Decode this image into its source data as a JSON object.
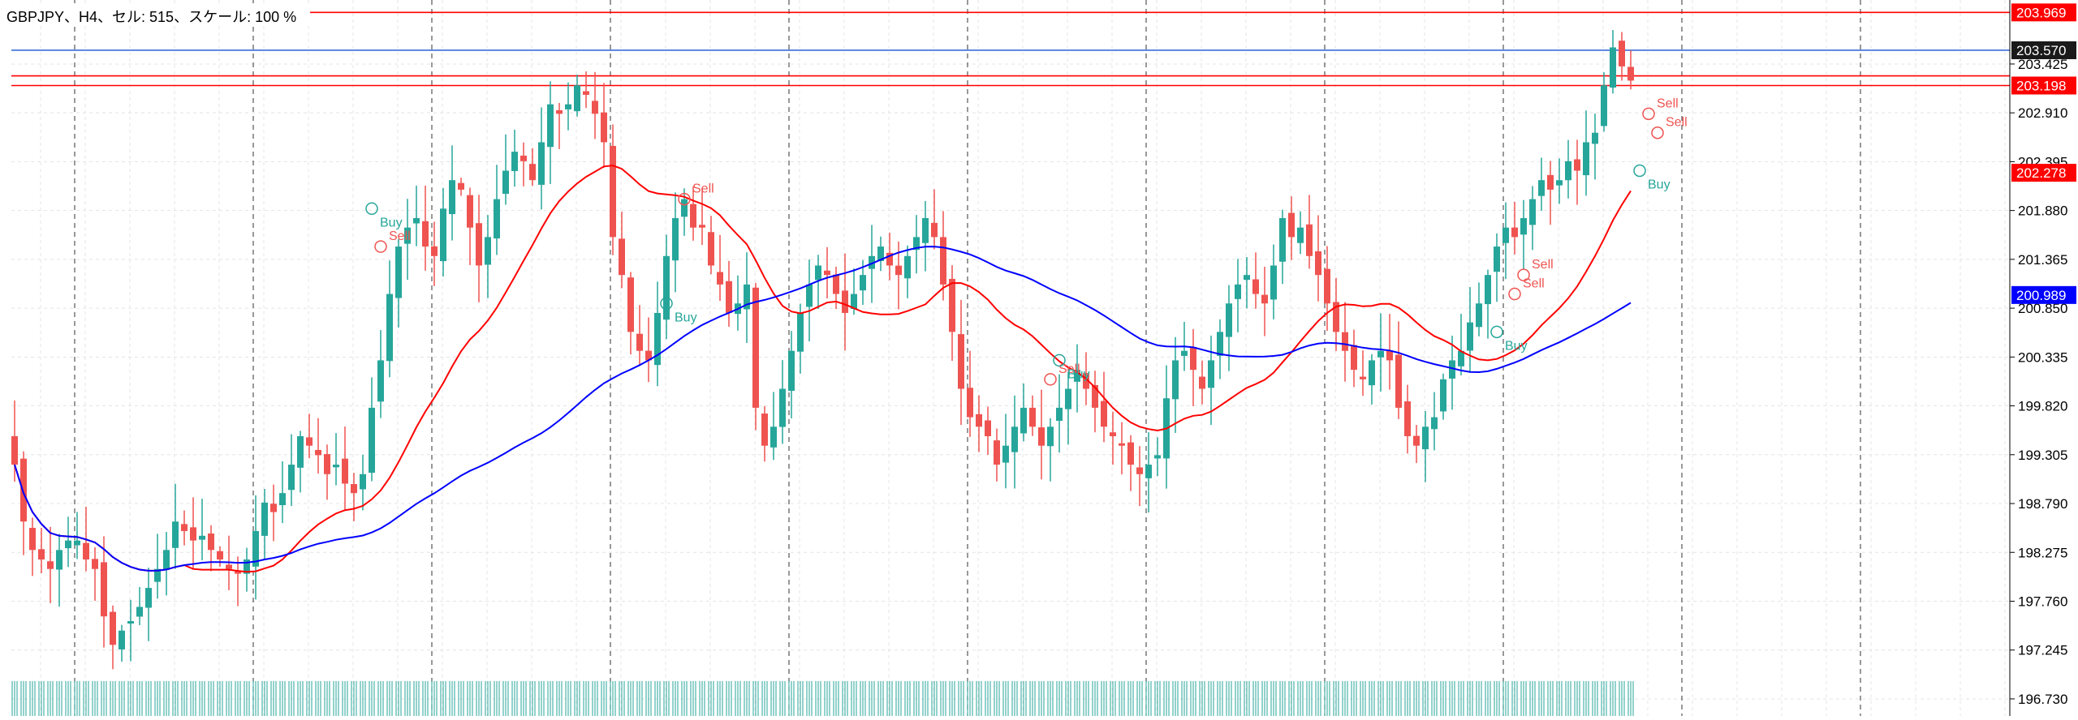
{
  "chart_data": {
    "type": "candlestick",
    "title": "GBPJPY、H4、セル: 515、スケール: 100 %",
    "symbol": "GBPJPY",
    "timeframe": "H4",
    "ylim": [
      196.55,
      204.1
    ],
    "price_scale": {
      "ticks": [
        "203.425",
        "202.910",
        "202.395",
        "201.880",
        "201.365",
        "200.850",
        "200.335",
        "199.820",
        "199.305",
        "198.790",
        "198.275",
        "197.760",
        "197.245",
        "196.730"
      ]
    },
    "horizontal_lines": [
      {
        "price": 203.969,
        "label": "203.969",
        "color": "#ff0000"
      },
      {
        "price": 203.57,
        "label": "203.570",
        "color": "#3a6fd8",
        "tag_color": "#1a1a1a"
      },
      {
        "price": 203.3,
        "label": "",
        "color": "#ff0000"
      },
      {
        "price": 203.198,
        "label": "203.198",
        "color": "#ff0000"
      }
    ],
    "price_tags": [
      {
        "price": 203.969,
        "label": "203.969",
        "color": "#ff0000"
      },
      {
        "price": 203.57,
        "label": "203.570",
        "color": "#1a1a1a"
      },
      {
        "price": 203.198,
        "label": "203.198",
        "color": "#ff0000"
      },
      {
        "price": 202.278,
        "label": "202.278",
        "color": "#ff0000"
      },
      {
        "price": 200.989,
        "label": "200.989",
        "color": "#0000ff"
      }
    ],
    "series": [
      {
        "kind": "close",
        "closes": [
          199.2,
          198.6,
          198.3,
          198.2,
          198.1,
          198.3,
          198.4,
          198.4,
          198.2,
          198.1,
          197.6,
          197.3,
          197.45,
          197.55,
          197.7,
          197.9,
          198.1,
          198.3,
          198.6,
          198.5,
          198.4,
          198.45,
          198.3,
          198.2,
          198.1,
          198.05,
          198.2,
          198.5,
          198.8,
          198.7,
          198.9,
          199.2,
          199.5,
          199.4,
          199.3,
          199.1,
          199.2,
          199.0,
          198.9,
          199.1,
          199.8,
          200.3,
          201.0,
          201.5,
          201.7,
          201.8,
          201.5,
          201.4,
          201.9,
          202.2,
          202.1,
          201.7,
          201.3,
          201.6,
          202.0,
          202.3,
          202.5,
          202.4,
          202.2,
          202.6,
          203.0,
          202.9,
          203.0,
          203.2,
          203.1,
          202.9,
          202.6,
          201.6,
          201.2,
          200.6,
          200.4,
          200.3,
          200.8,
          201.4,
          201.8,
          202.0,
          201.7,
          201.7,
          201.3,
          201.1,
          200.8,
          200.9,
          201.1,
          199.8,
          199.4,
          199.6,
          200.0,
          200.4,
          200.8,
          201.1,
          201.3,
          201.2,
          201.0,
          200.8,
          201.0,
          201.2,
          201.4,
          201.5,
          201.3,
          201.2,
          201.4,
          201.6,
          201.8,
          201.6,
          201.1,
          200.6,
          200.0,
          199.7,
          199.6,
          199.5,
          199.2,
          199.4,
          199.6,
          199.8,
          199.6,
          199.4,
          199.6,
          199.8,
          200.0,
          200.2,
          200.0,
          199.8,
          199.6,
          199.5,
          199.4,
          199.2,
          199.1,
          199.2,
          199.3,
          199.9,
          200.3,
          200.4,
          200.2,
          200.0,
          200.3,
          200.6,
          200.9,
          201.1,
          201.2,
          201.0,
          200.9,
          201.3,
          201.8,
          201.6,
          201.7,
          201.4,
          201.2,
          200.9,
          200.6,
          200.4,
          200.2,
          200.1,
          200.3,
          200.4,
          200.3,
          199.8,
          199.5,
          199.4,
          199.6,
          199.7,
          200.1,
          200.3,
          200.4,
          200.7,
          200.9,
          201.2,
          201.5,
          201.7,
          201.6,
          201.8,
          202.0,
          202.2,
          202.1,
          202.2,
          202.4,
          202.3,
          202.6,
          202.7,
          203.2,
          203.6,
          203.4,
          203.25
        ]
      },
      {
        "kind": "ma",
        "period": 20,
        "color": "#ff0000",
        "name": ""
      },
      {
        "kind": "ma",
        "period": 60,
        "color": "#0000ff",
        "name": ""
      }
    ],
    "signals": [
      {
        "type": "Buy",
        "index": 40,
        "price": 201.9
      },
      {
        "type": "Sell",
        "index": 41,
        "price": 201.5
      },
      {
        "type": "Sell",
        "index": 75,
        "price": 202.0
      },
      {
        "type": "Buy",
        "index": 73,
        "price": 200.9
      },
      {
        "type": "Sell",
        "index": 116,
        "price": 200.1
      },
      {
        "type": "Buy",
        "index": 117,
        "price": 200.3
      },
      {
        "type": "Sell",
        "index": 169,
        "price": 201.2
      },
      {
        "type": "Sell",
        "index": 168,
        "price": 201.0
      },
      {
        "type": "Buy",
        "index": 166,
        "price": 200.6
      },
      {
        "type": "Sell",
        "index": 183,
        "price": 202.9
      },
      {
        "type": "Sell",
        "index": 184,
        "price": 202.7
      },
      {
        "type": "Buy",
        "index": 182,
        "price": 202.3
      }
    ],
    "grid": true,
    "volume_bars": true
  },
  "colors": {
    "bull": "#26a69a",
    "bear": "#ef5350",
    "grid": "#e4e4e4",
    "session": "#555555",
    "buy_label": "#26a69a",
    "sell_label": "#ef5350"
  }
}
